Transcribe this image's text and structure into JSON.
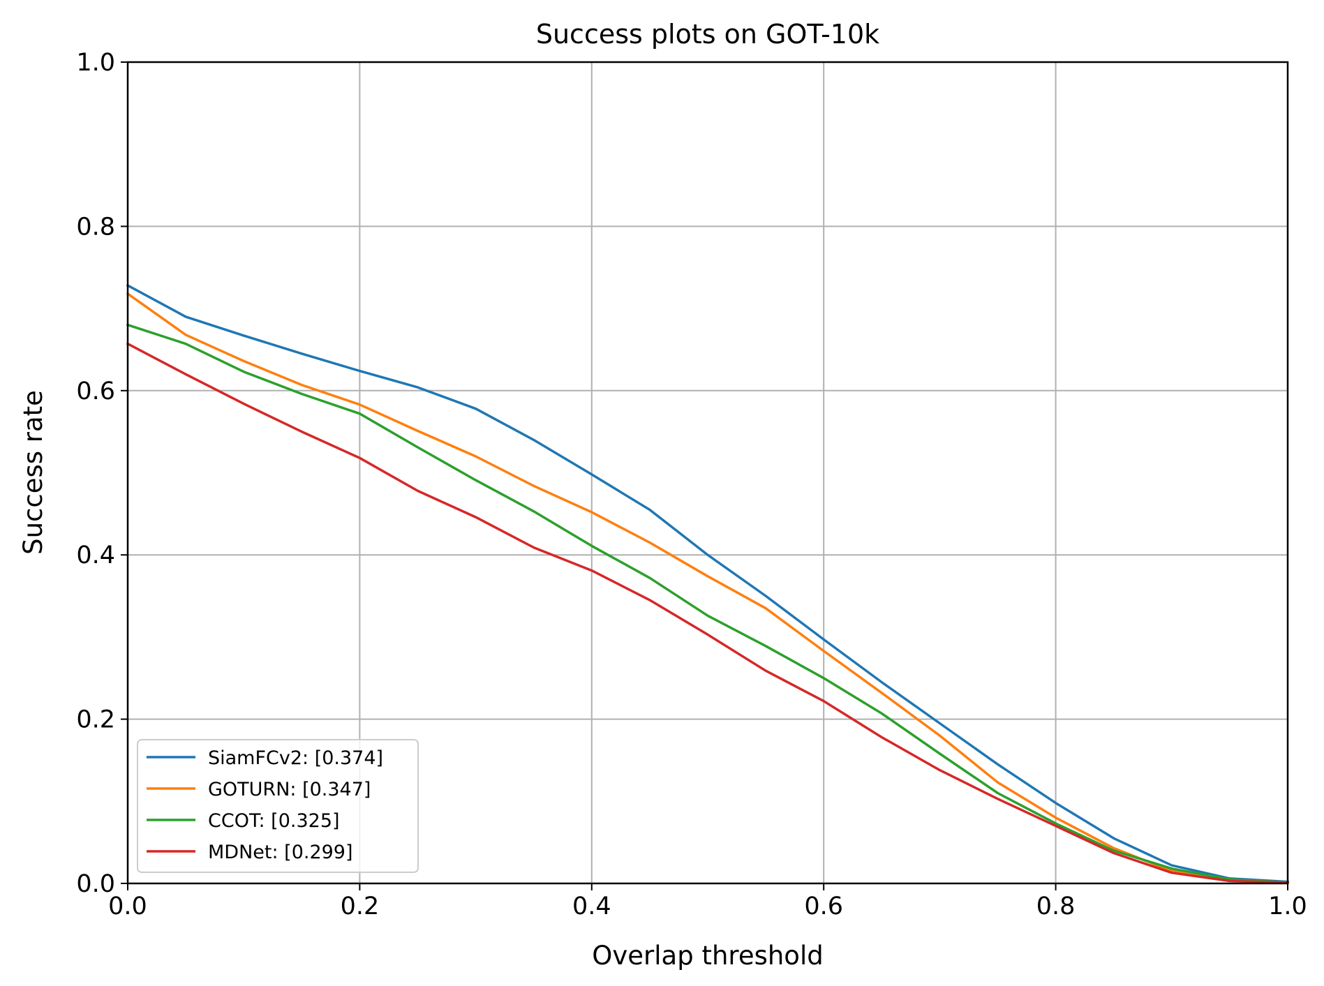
{
  "chart_data": {
    "type": "line",
    "title": "Success plots on GOT-10k",
    "xlabel": "Overlap threshold",
    "ylabel": "Success rate",
    "xlim": [
      0,
      1
    ],
    "ylim": [
      0,
      1
    ],
    "xticks": [
      "0.0",
      "0.2",
      "0.4",
      "0.6",
      "0.8",
      "1.0"
    ],
    "yticks": [
      "0.0",
      "0.2",
      "0.4",
      "0.6",
      "0.8",
      "1.0"
    ],
    "grid": true,
    "legend_position": "lower-left",
    "x": [
      0.0,
      0.05,
      0.1,
      0.15,
      0.2,
      0.25,
      0.3,
      0.35,
      0.4,
      0.45,
      0.5,
      0.55,
      0.6,
      0.65,
      0.7,
      0.75,
      0.8,
      0.85,
      0.9,
      0.95,
      1.0
    ],
    "series": [
      {
        "name": "SiamFCv2: [0.374]",
        "color": "#1f77b4",
        "values": [
          0.728,
          0.69,
          0.667,
          0.645,
          0.624,
          0.604,
          0.578,
          0.54,
          0.498,
          0.455,
          0.4,
          0.35,
          0.297,
          0.245,
          0.195,
          0.145,
          0.098,
          0.055,
          0.022,
          0.006,
          0.002
        ]
      },
      {
        "name": "GOTURN: [0.347]",
        "color": "#ff7f0e",
        "values": [
          0.718,
          0.668,
          0.636,
          0.607,
          0.583,
          0.551,
          0.52,
          0.484,
          0.452,
          0.415,
          0.374,
          0.335,
          0.283,
          0.232,
          0.18,
          0.123,
          0.08,
          0.043,
          0.015,
          0.004,
          0.001
        ]
      },
      {
        "name": "CCOT: [0.325]",
        "color": "#2ca02c",
        "values": [
          0.68,
          0.657,
          0.623,
          0.596,
          0.572,
          0.531,
          0.491,
          0.453,
          0.411,
          0.372,
          0.326,
          0.289,
          0.25,
          0.207,
          0.158,
          0.11,
          0.073,
          0.04,
          0.018,
          0.005,
          0.001
        ]
      },
      {
        "name": "MDNet: [0.299]",
        "color": "#d62728",
        "values": [
          0.657,
          0.62,
          0.584,
          0.55,
          0.518,
          0.478,
          0.446,
          0.409,
          0.381,
          0.345,
          0.303,
          0.259,
          0.222,
          0.178,
          0.138,
          0.103,
          0.07,
          0.037,
          0.013,
          0.003,
          0.001
        ]
      }
    ]
  }
}
